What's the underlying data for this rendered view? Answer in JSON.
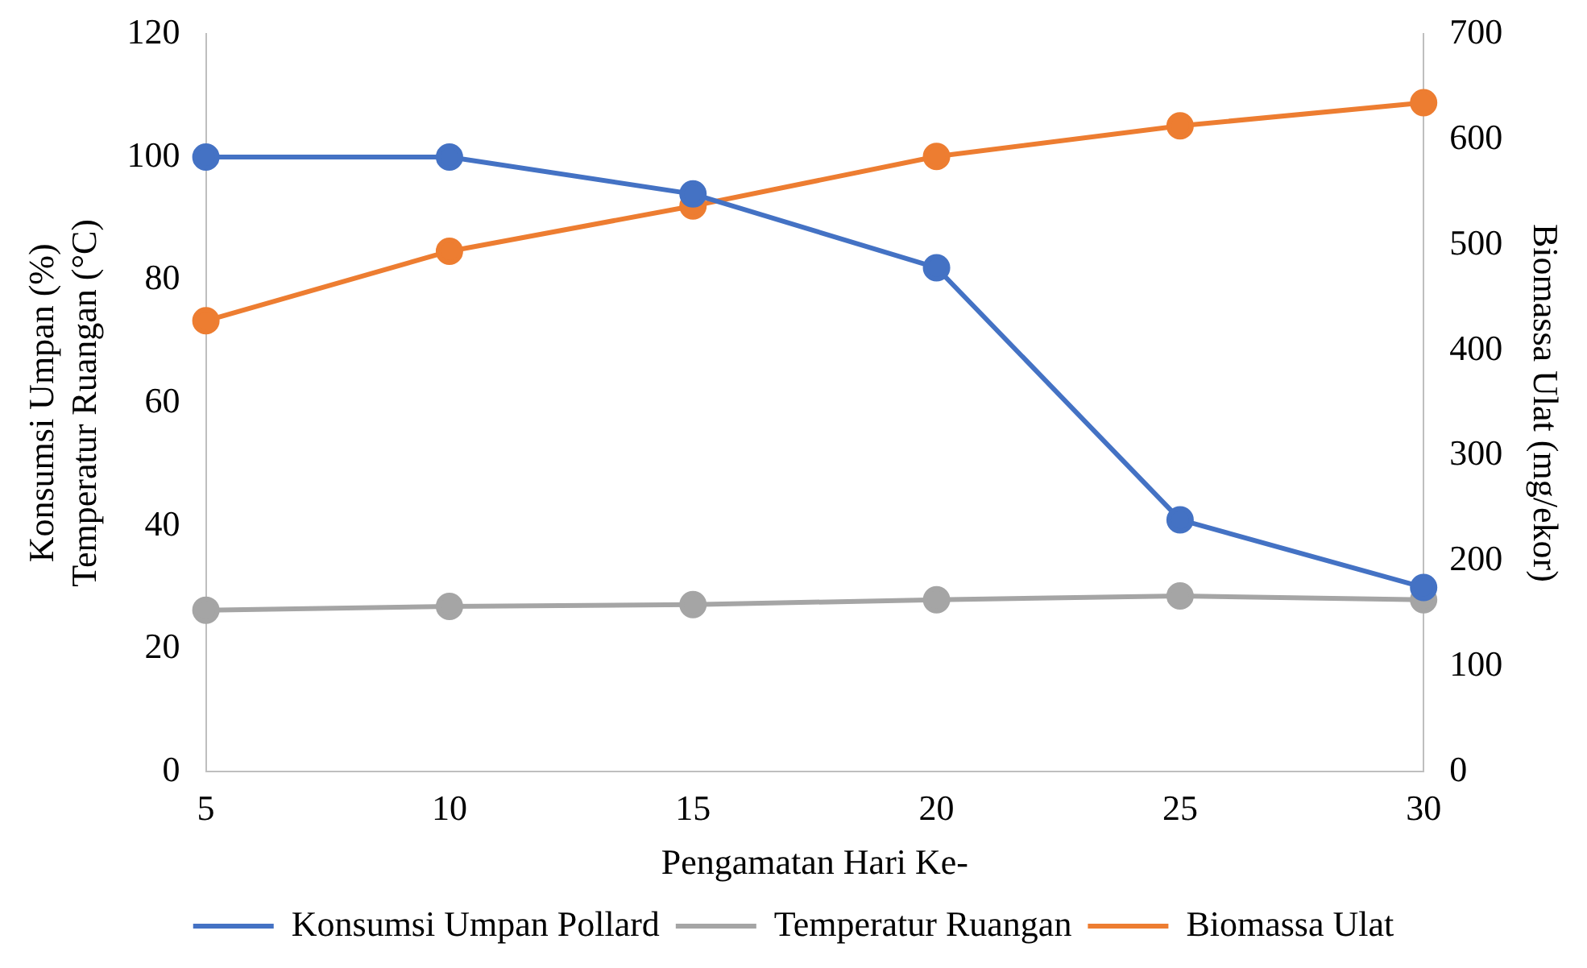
{
  "chart_data": {
    "type": "line",
    "xlabel": "Pengamatan Hari Ke-",
    "ylabel": "Konsumsi Umpan (%)\nTemperatur Ruangan (°C)",
    "y2label": "Biomassa Ulat (mg/ekor)",
    "categories": [
      "5",
      "10",
      "15",
      "20",
      "25",
      "30"
    ],
    "series": [
      {
        "name": "Konsumsi Umpan Pollard",
        "color": "#4472c4",
        "values": [
          100,
          100,
          94,
          82,
          41,
          30
        ]
      },
      {
        "name": "Temperatur Ruangan",
        "color": "#a5a5a5",
        "values": [
          26.3,
          26.9,
          27.2,
          28,
          28.6,
          28
        ]
      },
      {
        "name": "Biomassa Ulat",
        "color": "#ed7d31",
        "axis": "y2",
        "values": [
          428,
          494,
          537,
          584,
          613,
          635
        ]
      }
    ],
    "ylim": [
      0,
      120
    ],
    "yticks": [
      0,
      20,
      40,
      60,
      80,
      100,
      120
    ],
    "y2lim": [
      0,
      700
    ],
    "y2ticks": [
      0,
      100,
      200,
      300,
      400,
      500,
      600,
      700
    ],
    "grid": false,
    "legend": "bottom",
    "marker": "circle",
    "line_style": "solid"
  }
}
